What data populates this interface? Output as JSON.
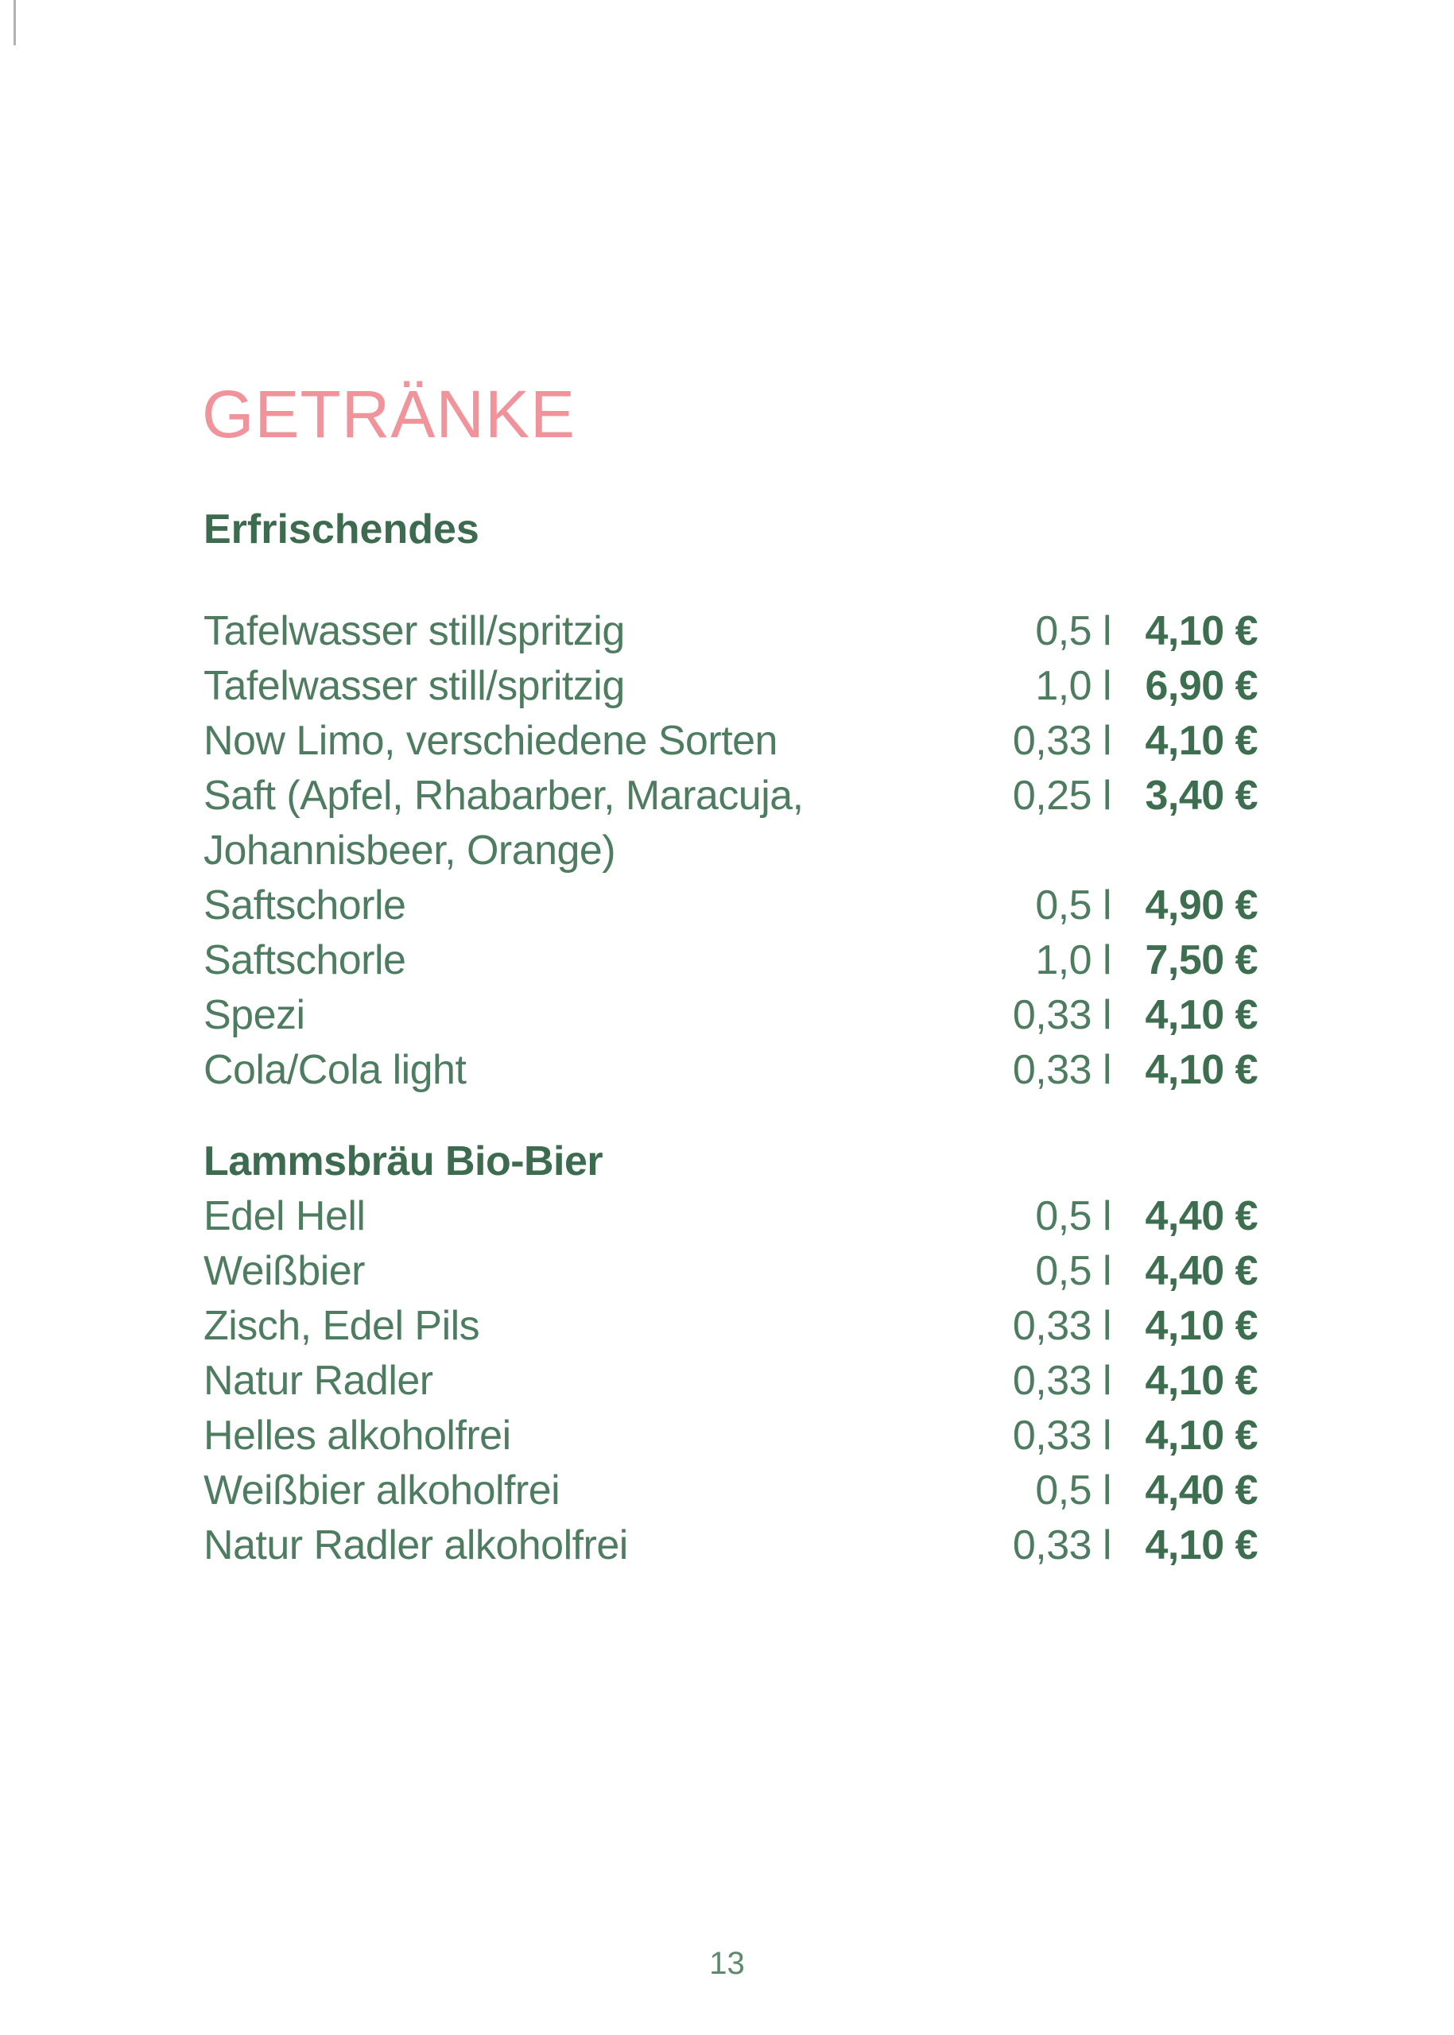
{
  "page": {
    "title": "GETRÄNKE",
    "page_number": "13",
    "colors": {
      "title_pink": "#f0939b",
      "heading_green": "#3d6b4f",
      "item_green": "#4e7c60",
      "price_green": "#3d6e4f",
      "page_number_green": "#5b8a6d"
    }
  },
  "sections": [
    {
      "heading": "Erfrischendes",
      "rows": [
        {
          "name": "Tafelwasser still/spritzig",
          "size": "0,5 l",
          "price": "4,10 €"
        },
        {
          "name": "Tafelwasser still/spritzig",
          "size": "1,0 l",
          "price": "6,90 €"
        },
        {
          "name": "Now Limo, verschiedene Sorten",
          "size": "0,33 l",
          "price": "4,10 €"
        },
        {
          "name": "Saft (Apfel, Rhabarber, Maracuja,",
          "size": "0,25 l",
          "price": "3,40 €"
        },
        {
          "name": "Johannisbeer, Orange)",
          "size": "",
          "price": ""
        },
        {
          "name": "Saftschorle",
          "size": "0,5 l",
          "price": "4,90 €"
        },
        {
          "name": "Saftschorle",
          "size": "1,0 l",
          "price": "7,50 €"
        },
        {
          "name": "Spezi",
          "size": "0,33 l",
          "price": "4,10 €"
        },
        {
          "name": "Cola/Cola light",
          "size": "0,33 l",
          "price": "4,10 €"
        }
      ]
    },
    {
      "heading": "Lammsbräu Bio-Bier",
      "rows": [
        {
          "name": "Edel Hell",
          "size": "0,5 l",
          "price": "4,40 €"
        },
        {
          "name": "Weißbier",
          "size": "0,5 l",
          "price": "4,40 €"
        },
        {
          "name": "Zisch, Edel Pils",
          "size": "0,33 l",
          "price": "4,10 €"
        },
        {
          "name": "Natur Radler",
          "size": "0,33 l",
          "price": "4,10 €"
        },
        {
          "name": "Helles alkoholfrei",
          "size": "0,33 l",
          "price": "4,10 €"
        },
        {
          "name": "Weißbier alkoholfrei",
          "size": "0,5 l",
          "price": "4,40 €"
        },
        {
          "name": "Natur Radler alkoholfrei",
          "size": "0,33 l",
          "price": "4,10 €"
        }
      ]
    }
  ]
}
